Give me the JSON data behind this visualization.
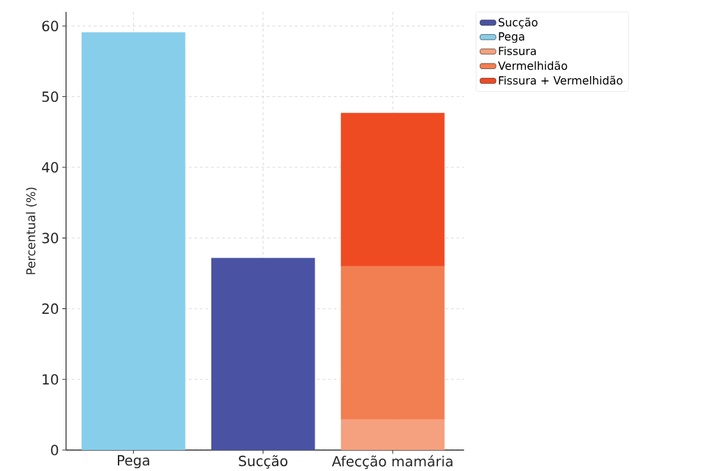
{
  "chart_data": {
    "type": "bar",
    "ylabel": "Percentual (%)",
    "categories": [
      "Pega",
      "Sucção",
      "Afecção mamária"
    ],
    "stacked": true,
    "ylim": [
      0,
      62
    ],
    "yticks": [
      0,
      10,
      20,
      30,
      40,
      50,
      60
    ],
    "grid": true,
    "legend": "top right",
    "series": [
      {
        "name": "Sucção",
        "color": "#4a53a3",
        "values": [
          null,
          27.2,
          null
        ]
      },
      {
        "name": "Pega",
        "color": "#87ceeb",
        "values": [
          59.1,
          null,
          null
        ]
      },
      {
        "name": "Fissura",
        "color": "#f5a07e",
        "values": [
          null,
          null,
          4.3
        ]
      },
      {
        "name": "Vermelhidão",
        "color": "#f27f52",
        "values": [
          null,
          null,
          21.7
        ]
      },
      {
        "name": "Fissura + Vermelhidão",
        "color": "#ef4b23",
        "values": [
          null,
          null,
          21.7
        ]
      }
    ]
  }
}
